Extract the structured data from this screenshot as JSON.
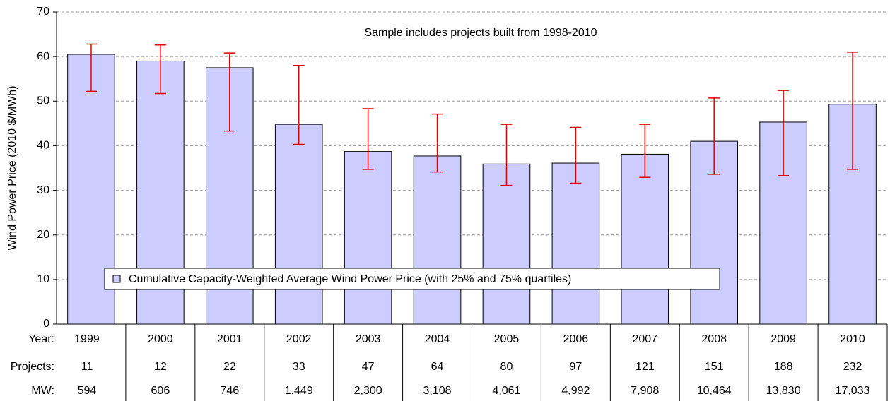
{
  "chart_data": {
    "type": "bar",
    "y_axis_label": "Wind Power Price (2010 $/MWh)",
    "annotation": "Sample includes projects built from 1998-2010",
    "legend_label": "Cumulative Capacity-Weighted Average Wind Power Price (with 25% and 75% quartiles)",
    "color": "#ccccff",
    "error_color": "#e00000",
    "grid": true,
    "ylim": [
      0,
      70
    ],
    "yticks": [
      0,
      10,
      20,
      30,
      40,
      50,
      60,
      70
    ],
    "categories": [
      "1999",
      "2000",
      "2001",
      "2002",
      "2003",
      "2004",
      "2005",
      "2006",
      "2007",
      "2008",
      "2009",
      "2010"
    ],
    "values": [
      60.5,
      59,
      57.5,
      44.8,
      38.7,
      37.7,
      35.9,
      36.1,
      38.1,
      41,
      45.3,
      49.3
    ],
    "q25": [
      52.2,
      51.7,
      43.3,
      40.3,
      34.7,
      34.1,
      31.1,
      31.6,
      32.9,
      33.6,
      33.3,
      34.7
    ],
    "q75": [
      62.8,
      62.6,
      60.8,
      58,
      48.3,
      47.1,
      44.8,
      44.1,
      44.8,
      50.7,
      52.4,
      61
    ],
    "table": {
      "row_labels": [
        "Year:",
        "Projects:",
        "MW:"
      ],
      "projects": [
        "11",
        "12",
        "22",
        "33",
        "47",
        "64",
        "80",
        "97",
        "121",
        "151",
        "188",
        "232"
      ],
      "mw": [
        "594",
        "606",
        "746",
        "1,449",
        "2,300",
        "3,108",
        "4,061",
        "4,992",
        "7,908",
        "10,464",
        "13,830",
        "17,033"
      ]
    }
  }
}
